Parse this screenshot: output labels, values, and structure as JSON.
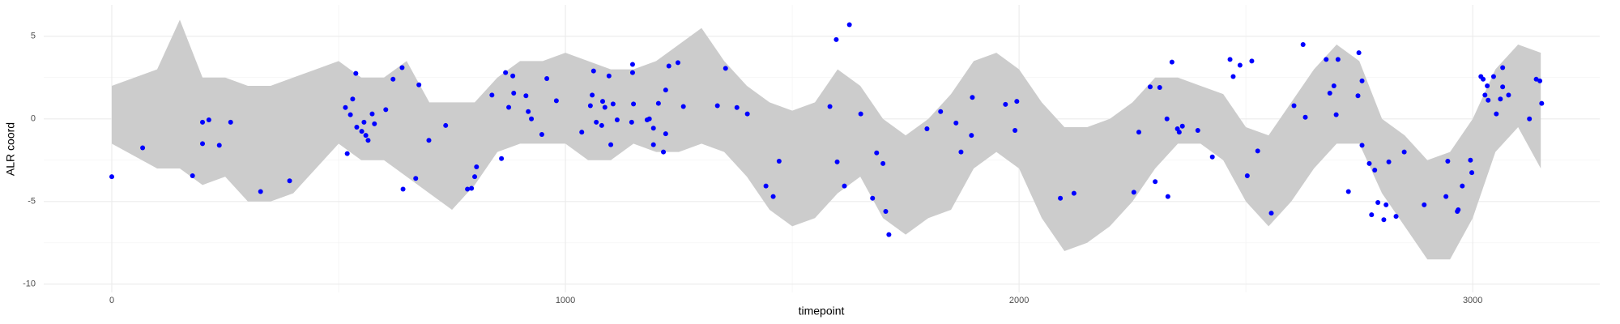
{
  "chart_data": {
    "type": "scatter",
    "x_label": "timepoint",
    "y_label": "ALR coord",
    "xlim": [
      -150,
      3280
    ],
    "ylim": [
      -10.5,
      6.9
    ],
    "xticks": [
      0,
      1000,
      2000,
      3000
    ],
    "yticks": [
      5,
      0,
      -5,
      -10
    ],
    "x_minor_grid": [
      500,
      1500,
      2500
    ],
    "y_minor_grid": [
      2.5,
      -2.5,
      -7.5
    ],
    "grid": true,
    "ribbon": {
      "color": "#cccccc",
      "x": [
        0,
        100,
        150,
        200,
        250,
        300,
        350,
        400,
        450,
        500,
        550,
        600,
        650,
        700,
        750,
        800,
        850,
        900,
        950,
        1000,
        1050,
        1100,
        1150,
        1200,
        1250,
        1300,
        1350,
        1400,
        1450,
        1500,
        1550,
        1600,
        1650,
        1700,
        1750,
        1800,
        1850,
        1900,
        1950,
        2000,
        2050,
        2100,
        2150,
        2200,
        2250,
        2300,
        2350,
        2400,
        2450,
        2500,
        2550,
        2600,
        2650,
        2700,
        2750,
        2800,
        2850,
        2900,
        2950,
        3000,
        3050,
        3100,
        3150
      ],
      "upper": [
        2,
        3,
        6,
        2.5,
        2.5,
        2,
        2,
        2.5,
        3,
        3.5,
        2.5,
        2.5,
        3.5,
        1,
        1,
        1,
        2.5,
        3.5,
        3.5,
        4,
        3.5,
        3,
        3,
        3.5,
        4.5,
        5.5,
        3.5,
        2,
        1,
        0.5,
        1,
        3,
        2,
        0,
        -1,
        0,
        1.5,
        3.5,
        4,
        3,
        1,
        -0.5,
        -0.5,
        0,
        1,
        2.5,
        2.5,
        2,
        1.5,
        -0.5,
        -1,
        1,
        3,
        4.5,
        3.5,
        0,
        -1,
        -2.5,
        -2,
        0,
        3,
        4.5,
        4
      ],
      "lower": [
        -1.5,
        -3,
        -3,
        -4,
        -3.5,
        -5,
        -5,
        -4.5,
        -3,
        -1.5,
        -2.5,
        -2.5,
        -3.5,
        -4.5,
        -5.5,
        -4,
        -2,
        -1.5,
        -1.5,
        -1.5,
        -2.5,
        -2.5,
        -1.5,
        -2,
        -2,
        -1.5,
        -2,
        -3.5,
        -5.5,
        -6.5,
        -6,
        -4.5,
        -3.5,
        -6,
        -7,
        -6,
        -5.5,
        -3,
        -2,
        -3,
        -6,
        -8,
        -7.5,
        -6.5,
        -5,
        -3,
        -1.5,
        -1.5,
        -2.5,
        -5,
        -6.5,
        -5,
        -3,
        -1.5,
        -1.5,
        -4.5,
        -6.5,
        -8.5,
        -8.5,
        -6,
        -2,
        -0.5,
        -3
      ]
    },
    "points": {
      "color": "#0000ff",
      "x": [
        0,
        68,
        178,
        200,
        200,
        214,
        237,
        262,
        328,
        392,
        515,
        519,
        526,
        531,
        538,
        540,
        551,
        556,
        560,
        565,
        574,
        579,
        604,
        620,
        640,
        642,
        670,
        677,
        699,
        736,
        784,
        793,
        800,
        804,
        838,
        859,
        868,
        875,
        884,
        886,
        913,
        918,
        925,
        948,
        959,
        980,
        1036,
        1062,
        1059,
        1055,
        1068,
        1080,
        1082,
        1087,
        1096,
        1100,
        1105,
        1114,
        1146,
        1148,
        1148,
        1150,
        1180,
        1185,
        1194,
        1194,
        1205,
        1216,
        1221,
        1228,
        1221,
        1248,
        1260,
        1335,
        1353,
        1378,
        1401,
        1442,
        1458,
        1471,
        1583,
        1597,
        1599,
        1615,
        1626,
        1651,
        1677,
        1686,
        1700,
        1706,
        1713,
        1797,
        1827,
        1861,
        1872,
        1895,
        1897,
        1970,
        1991,
        1995,
        2091,
        2121,
        2253,
        2264,
        2289,
        2300,
        2310,
        2326,
        2328,
        2337,
        2349,
        2353,
        2360,
        2394,
        2426,
        2465,
        2472,
        2487,
        2503,
        2513,
        2526,
        2556,
        2606,
        2626,
        2631,
        2677,
        2685,
        2694,
        2699,
        2703,
        2726,
        2747,
        2749,
        2756,
        2756,
        2772,
        2777,
        2784,
        2791,
        2804,
        2809,
        2815,
        2831,
        2849,
        2893,
        2941,
        2945,
        2966,
        2968,
        2977,
        2995,
        2998,
        3018,
        3023,
        3027,
        3032,
        3034,
        3046,
        3052,
        3061,
        3066,
        3066,
        3079,
        3125,
        3140,
        3148,
        3152
      ],
      "values": [
        -3.5,
        -1.75,
        -3.44,
        -0.2,
        -1.5,
        -0.06,
        -1.6,
        -0.2,
        -4.4,
        -3.75,
        0.69,
        -2.1,
        0.25,
        1.2,
        2.75,
        -0.5,
        -0.75,
        -0.2,
        -1,
        -1.3,
        0.3,
        -0.3,
        0.56,
        2.4,
        3.1,
        -4.25,
        -3.6,
        2.06,
        -1.3,
        -0.4,
        -4.25,
        -4.2,
        -3.5,
        -2.9,
        1.44,
        -2.4,
        2.8,
        0.7,
        2.6,
        1.56,
        1.4,
        0.44,
        0,
        -0.94,
        2.44,
        1.1,
        -0.8,
        2.9,
        1.44,
        0.8,
        -0.2,
        -0.4,
        1.06,
        0.7,
        2.6,
        -1.56,
        0.9,
        -0.06,
        -0.2,
        3.3,
        2.8,
        0.9,
        -0.06,
        0,
        -0.56,
        -1.56,
        0.94,
        -2,
        -0.9,
        3.2,
        1.75,
        3.4,
        0.75,
        0.8,
        3.06,
        0.69,
        0.3,
        -4.06,
        -4.7,
        -2.56,
        0.75,
        4.8,
        -2.6,
        -4.06,
        5.7,
        0.3,
        -4.8,
        -2.06,
        -2.7,
        -5.6,
        -7,
        -0.6,
        0.44,
        -0.25,
        -2,
        -1,
        1.3,
        0.88,
        -0.7,
        1.06,
        -4.8,
        -4.5,
        -4.44,
        -0.8,
        1.94,
        -3.8,
        1.9,
        0,
        -4.7,
        3.44,
        -0.6,
        -0.8,
        -0.44,
        -0.7,
        -2.3,
        3.6,
        2.56,
        3.25,
        -3.44,
        3.5,
        -1.94,
        -5.7,
        0.8,
        4.5,
        0.1,
        3.6,
        1.56,
        2,
        0.25,
        3.6,
        -4.4,
        1.4,
        4,
        2.3,
        -1.6,
        -2.7,
        -5.8,
        -3.1,
        -5.06,
        -6.1,
        -5.2,
        -2.6,
        -5.9,
        -2,
        -5.2,
        -4.7,
        -2.56,
        -5.6,
        -5.5,
        -4.06,
        -2.5,
        -3.25,
        2.56,
        2.4,
        1.44,
        2,
        1.13,
        2.56,
        0.3,
        1.2,
        3.1,
        1.94,
        1.44,
        0,
        2.4,
        2.3,
        0.94
      ]
    }
  }
}
